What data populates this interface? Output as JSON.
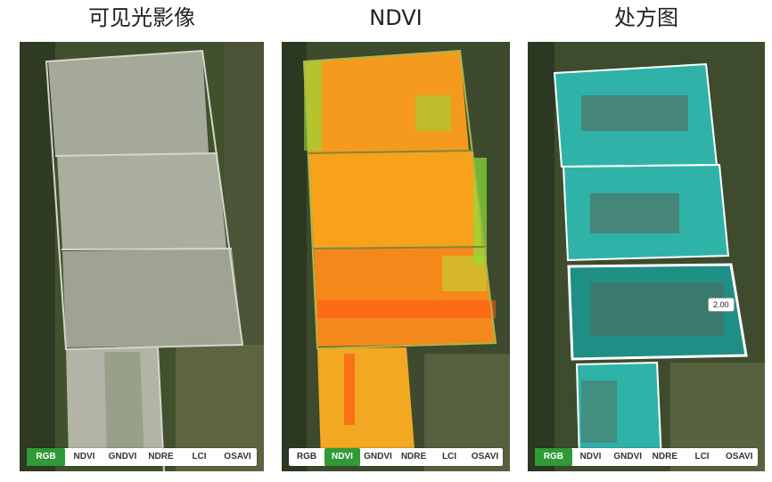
{
  "panels": [
    {
      "title": "可见光影像",
      "active_tab": 0
    },
    {
      "title": "NDVI",
      "active_tab": 1
    },
    {
      "title": "处方图",
      "active_tab": 0,
      "tooltip": "2.00"
    }
  ],
  "tabs": [
    "RGB",
    "NDVI",
    "GNDVI",
    "NDRE",
    "LCI",
    "OSAVI"
  ],
  "colors": {
    "active_tab": "#2f9a36",
    "prescription": "#2fb3a8",
    "ndvi_low": "#ff5a10",
    "ndvi_high": "#8be03a"
  }
}
